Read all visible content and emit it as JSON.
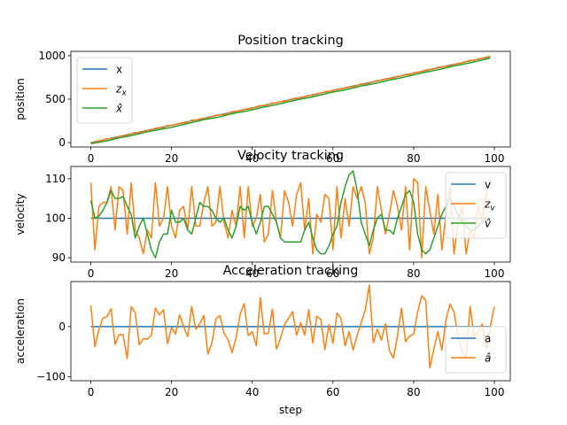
{
  "figure": {
    "xlabel": "step"
  },
  "chart_data": [
    {
      "type": "line",
      "title": "Position tracking",
      "xlabel": "",
      "ylabel": "position",
      "xlim": [
        -4.95,
        103.95
      ],
      "ylim": [
        -50,
        1050
      ],
      "xticks": [
        0,
        20,
        40,
        60,
        80,
        100
      ],
      "yticks": [
        0,
        500,
        1000
      ],
      "legend_position": "upper-left",
      "series": [
        {
          "name": "x",
          "label_mode": "text",
          "label_parts": [
            "x"
          ],
          "color": "#1f77b4",
          "kind": "linear",
          "x0": 0,
          "step": 1,
          "a": 0,
          "b": 10,
          "n": 100
        },
        {
          "name": "z_x",
          "label_mode": "sub",
          "label_parts": [
            "z",
            "x"
          ],
          "color": "#ff7f0e",
          "kind": "linear_offset",
          "x0": 0,
          "step": 1,
          "a": 0,
          "b": 10,
          "n": 100,
          "offsets": [
            -8,
            -3,
            2,
            -4,
            6,
            -6,
            -8,
            -2,
            2,
            -10,
            1,
            8,
            -7,
            3,
            -2,
            -7,
            8,
            1,
            -7,
            6,
            -3,
            -1,
            4,
            -4,
            -7,
            9,
            -4,
            4,
            1,
            -8,
            -1,
            6,
            -2,
            -7,
            -5,
            8,
            -1,
            -2,
            3,
            -6,
            -6,
            2,
            5,
            -3,
            -4,
            7,
            -4,
            3,
            -7,
            -1,
            5,
            2,
            -4,
            -2,
            5,
            -8,
            6,
            -2,
            4,
            3,
            -5,
            5,
            -1,
            -3,
            3,
            -7,
            -2,
            6,
            -8,
            -6,
            2,
            5,
            -4,
            4,
            -1,
            -6,
            4,
            -2,
            6,
            -5,
            3,
            -2,
            -3,
            5,
            2,
            -4,
            8,
            -4,
            1,
            -8,
            -3,
            1,
            -4,
            2,
            7,
            -4,
            4,
            -1,
            4,
            3
          ]
        },
        {
          "name": "x_hat",
          "label_mode": "hat",
          "label_parts": [
            "x"
          ],
          "color": "#2ca02c",
          "kind": "linear_offset",
          "x0": 0,
          "step": 1,
          "a": 0,
          "b": 10,
          "n": 100,
          "offsets": [
            -12,
            -14,
            -15,
            -18,
            -20,
            -18,
            -16,
            -15,
            -16,
            -18,
            -19,
            -18,
            -17,
            -15,
            -14,
            -16,
            -18,
            -19,
            -20,
            -22,
            -24,
            -23,
            -21,
            -20,
            -21,
            -20,
            -18,
            -17,
            -16,
            -18,
            -20,
            -22,
            -23,
            -21,
            -19,
            -18,
            -17,
            -19,
            -21,
            -23,
            -22,
            -21,
            -20,
            -19,
            -21,
            -22,
            -23,
            -22,
            -21,
            -20,
            -19,
            -18,
            -19,
            -20,
            -22,
            -23,
            -22,
            -21,
            -20,
            -19,
            -18,
            -20,
            -22,
            -23,
            -22,
            -21,
            -20,
            -19,
            -20,
            -22,
            -23,
            -24,
            -22,
            -21,
            -20,
            -21,
            -22,
            -23,
            -22,
            -21,
            -20,
            -19,
            -18,
            -19,
            -20,
            -21,
            -22,
            -21,
            -20,
            -19,
            -18,
            -19,
            -20,
            -21,
            -22,
            -21,
            -20,
            -19,
            -18,
            -17
          ]
        }
      ]
    },
    {
      "type": "line",
      "title": "Velocity tracking",
      "xlabel": "",
      "ylabel": "velocity",
      "xlim": [
        -4.95,
        103.95
      ],
      "ylim": [
        88.9,
        113.1
      ],
      "xticks": [
        0,
        20,
        40,
        60,
        80,
        100
      ],
      "yticks": [
        90,
        100,
        110
      ],
      "legend_position": "upper-right",
      "series": [
        {
          "name": "v",
          "label_mode": "text",
          "label_parts": [
            "v"
          ],
          "color": "#1f77b4",
          "kind": "constant",
          "x0": 0,
          "step": 1,
          "value": 100,
          "n": 100
        },
        {
          "name": "z_v",
          "label_mode": "sub",
          "label_parts": [
            "z",
            "v"
          ],
          "color": "#ff7f0e",
          "x0": 0,
          "step": 1,
          "values": [
            109,
            92,
            103,
            104,
            104,
            108,
            97,
            108,
            107,
            96,
            109,
            97,
            95,
            91,
            97,
            95,
            109,
            98,
            100,
            108,
            98,
            95,
            102,
            103,
            97,
            108,
            98,
            98,
            104,
            108,
            98,
            99,
            108,
            99,
            95,
            102,
            98,
            108,
            95,
            108,
            98,
            100,
            106,
            94,
            96,
            107,
            99,
            95,
            107,
            104,
            98,
            106,
            109,
            97,
            105,
            91,
            101,
            99,
            106,
            105,
            92,
            108,
            95,
            105,
            98,
            108,
            105,
            108,
            104,
            91,
            95,
            108,
            102,
            96,
            101,
            107,
            103,
            97,
            108,
            92,
            110,
            109,
            90,
            108,
            102,
            96,
            106,
            92,
            101,
            108,
            91,
            99,
            103,
            91,
            97,
            95,
            103,
            99,
            106,
            110
          ]
        },
        {
          "name": "v_hat",
          "label_mode": "hat",
          "label_parts": [
            "v"
          ],
          "color": "#2ca02c",
          "x0": 0,
          "step": 1,
          "values": [
            104.5,
            100,
            100.5,
            102,
            104,
            107,
            105,
            105,
            105.5,
            103,
            101,
            95,
            98,
            100,
            96,
            92,
            90,
            94,
            96,
            96,
            102,
            99,
            99,
            100,
            97,
            96,
            100,
            104,
            103,
            103,
            102,
            100,
            99,
            100,
            97,
            95,
            98,
            103,
            102,
            103,
            99,
            96,
            99,
            103,
            103,
            101,
            99,
            95,
            94,
            94,
            94,
            94,
            94,
            97,
            99,
            95,
            92,
            91,
            91,
            93,
            96,
            98,
            104,
            108,
            111,
            112,
            107,
            99,
            96,
            93,
            97,
            100,
            101,
            97,
            97,
            96,
            100,
            103,
            106,
            107,
            104,
            96,
            92,
            91,
            92,
            95,
            98,
            101,
            103,
            105,
            103,
            101,
            99,
            98,
            97,
            97,
            98,
            99,
            100,
            100
          ]
        }
      ]
    },
    {
      "type": "line",
      "title": "Acceleration tracking",
      "xlabel": "step",
      "ylabel": "acceleration",
      "xlim": [
        -4.95,
        103.95
      ],
      "ylim": [
        -108,
        90
      ],
      "xticks": [
        0,
        20,
        40,
        60,
        80,
        100
      ],
      "yticks": [
        -100,
        0
      ],
      "legend_position": "lower-right",
      "series": [
        {
          "name": "a",
          "label_mode": "text",
          "label_parts": [
            "a"
          ],
          "color": "#1f77b4",
          "kind": "constant",
          "x0": 0,
          "step": 1,
          "value": 0,
          "n": 100
        },
        {
          "name": "a_hat",
          "label_mode": "hat",
          "label_parts": [
            "a"
          ],
          "color": "#ff7f0e",
          "x0": 0,
          "step": 1,
          "values": [
            42,
            -40,
            -6,
            17,
            20,
            36,
            -35,
            -16,
            -16,
            -64,
            40,
            28,
            -36,
            -24,
            -25,
            -17,
            37,
            23,
            34,
            -34,
            -2,
            -15,
            24,
            0,
            -20,
            40,
            -5,
            6,
            22,
            -55,
            -33,
            16,
            22,
            -13,
            -26,
            -52,
            -22,
            25,
            46,
            -18,
            -10,
            -38,
            58,
            -15,
            -13,
            35,
            -45,
            -23,
            4,
            17,
            30,
            -17,
            8,
            -17,
            34,
            -33,
            21,
            14,
            -46,
            4,
            -33,
            27,
            16,
            -38,
            -10,
            -47,
            -17,
            8,
            33,
            83,
            -32,
            -5,
            -27,
            6,
            -48,
            -63,
            -18,
            37,
            -30,
            -19,
            -15,
            29,
            62,
            52,
            -82,
            -45,
            -10,
            -47,
            13,
            45,
            29,
            -18,
            -50,
            -60,
            40,
            -20,
            -10,
            5,
            -45,
            0,
            40
          ]
        }
      ]
    }
  ]
}
